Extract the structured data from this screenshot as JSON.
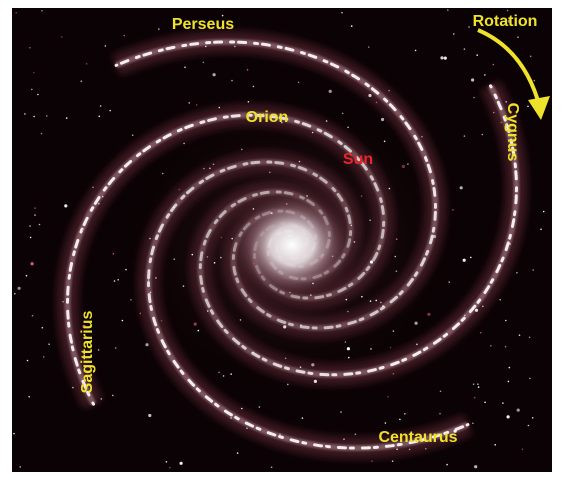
{
  "labels": [
    "Perseus",
    "Rotation",
    "Cygnus",
    "Orion",
    "Sun",
    "Sagittarius",
    "Centaurus"
  ]
}
